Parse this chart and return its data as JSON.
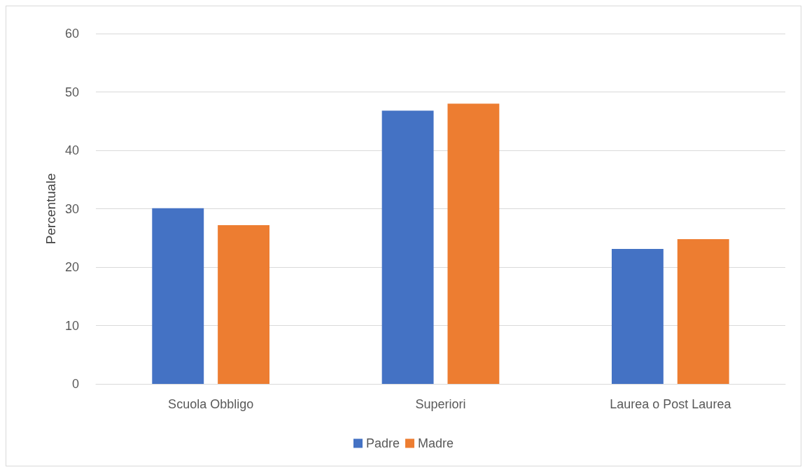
{
  "chart_data": {
    "type": "bar",
    "ylabel": "Percentuale",
    "categories": [
      "Scuola Obbligo",
      "Superiori",
      "Laurea o Post Laurea"
    ],
    "series": [
      {
        "name": "Padre",
        "color": "#4472c4",
        "values": [
          30.1,
          46.8,
          23.1
        ]
      },
      {
        "name": "Madre",
        "color": "#ed7d31",
        "values": [
          27.2,
          48.0,
          24.8
        ]
      }
    ],
    "ylim": [
      0,
      60
    ],
    "yticks": [
      0,
      10,
      20,
      30,
      40,
      50,
      60
    ],
    "grid": "y",
    "legend": "bottom"
  }
}
